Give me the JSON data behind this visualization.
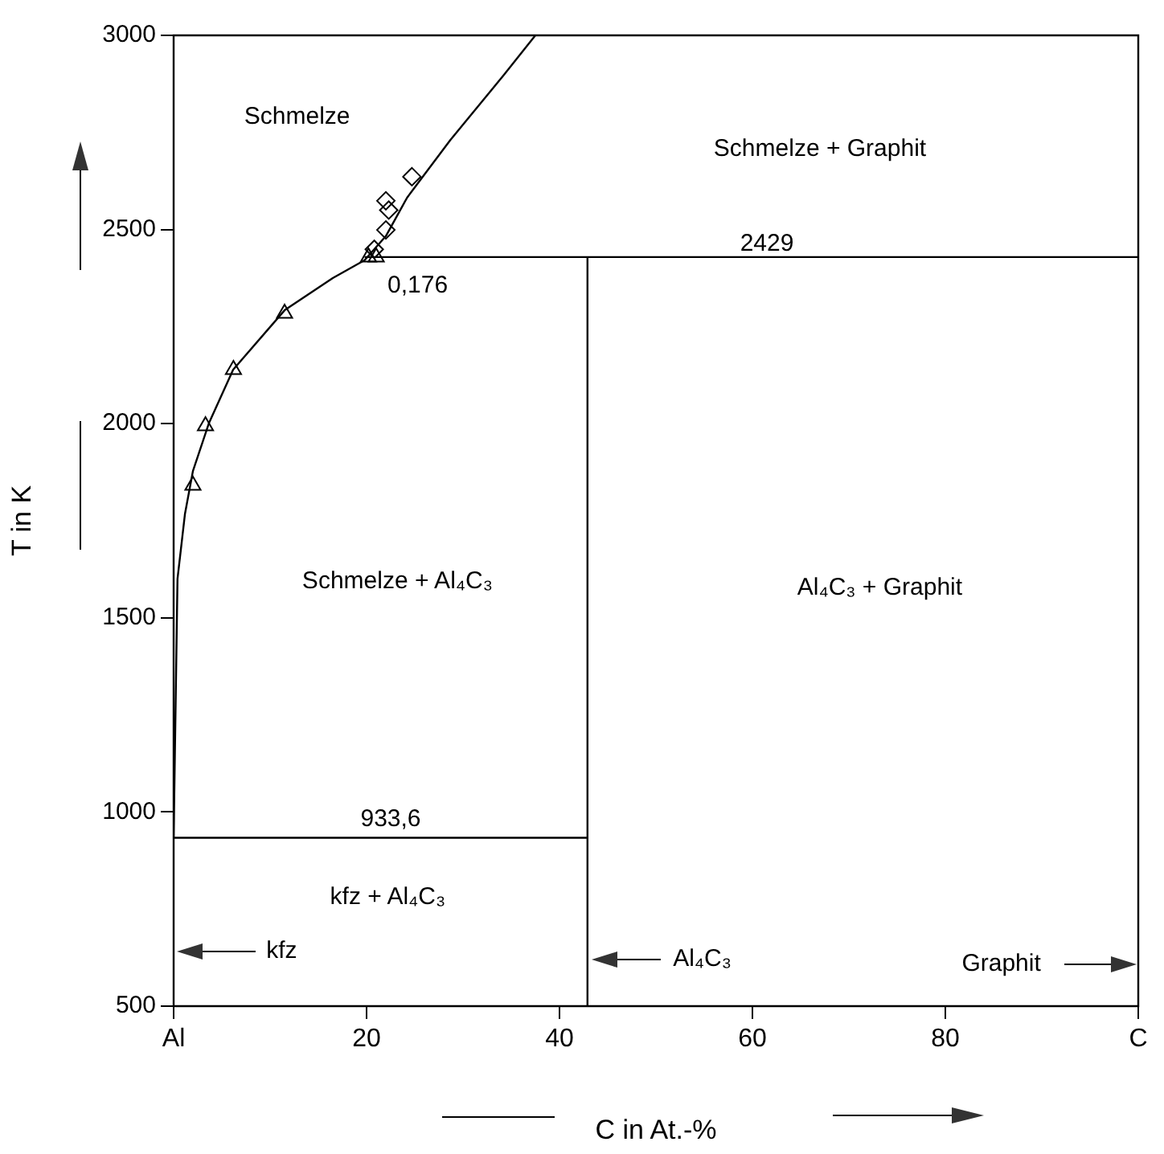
{
  "chart_data": {
    "type": "line",
    "xlabel": "C in At.-%",
    "ylabel": "T in K",
    "xlim": [
      0,
      100
    ],
    "ylim": [
      500,
      3000
    ],
    "xticks": [
      {
        "value": 0,
        "label": "Al"
      },
      20,
      40,
      60,
      80,
      {
        "value": 100,
        "label": "C"
      }
    ],
    "yticks": [
      500,
      1000,
      1500,
      2000,
      2500,
      3000
    ],
    "grid": false,
    "legend": false,
    "series": [
      {
        "type": "line",
        "color": "#000000",
        "marker": "none",
        "x": [
          0,
          0.4,
          1.17,
          2.0,
          3.67,
          6.17,
          11.5,
          16.5,
          19.8,
          22.0,
          24.2,
          28.7,
          34.2,
          37.5
        ],
        "values": [
          933.6,
          1600,
          1767,
          1878,
          2002,
          2139,
          2292,
          2375,
          2421,
          2483,
          2582,
          2731,
          2897,
          3000
        ]
      },
      {
        "type": "line",
        "color": "#000000",
        "marker": "none",
        "x": [
          19.8,
          100
        ],
        "values": [
          2429,
          2429
        ]
      },
      {
        "type": "line",
        "color": "#000000",
        "marker": "none",
        "x": [
          0,
          42.9
        ],
        "values": [
          933.6,
          933.6
        ]
      },
      {
        "type": "line",
        "color": "#000000",
        "marker": "none",
        "x": [
          42.9,
          42.9
        ],
        "values": [
          500,
          2429
        ]
      },
      {
        "type": "scatter",
        "color": "#000000",
        "marker": "triangle",
        "x": [
          2,
          3.3,
          6.2,
          11.5,
          20.2,
          21
        ],
        "values": [
          1841,
          1994,
          2139,
          2284,
          2429,
          2429
        ]
      },
      {
        "type": "scatter",
        "color": "#000000",
        "marker": "diamond",
        "x": [
          20.8,
          22,
          22.3,
          22,
          24.7
        ],
        "values": [
          2449,
          2499,
          2550,
          2574,
          2636
        ]
      }
    ],
    "annotations": [
      "Schmelze",
      "Schmelze + Graphit",
      "2429",
      "0,176",
      "Schmelze + Al₄C₃",
      "Al₄C₃ + Graphit",
      "933,6",
      "kfz + Al₄C₃",
      "kfz",
      "Al₄C₃",
      "Graphit"
    ]
  }
}
